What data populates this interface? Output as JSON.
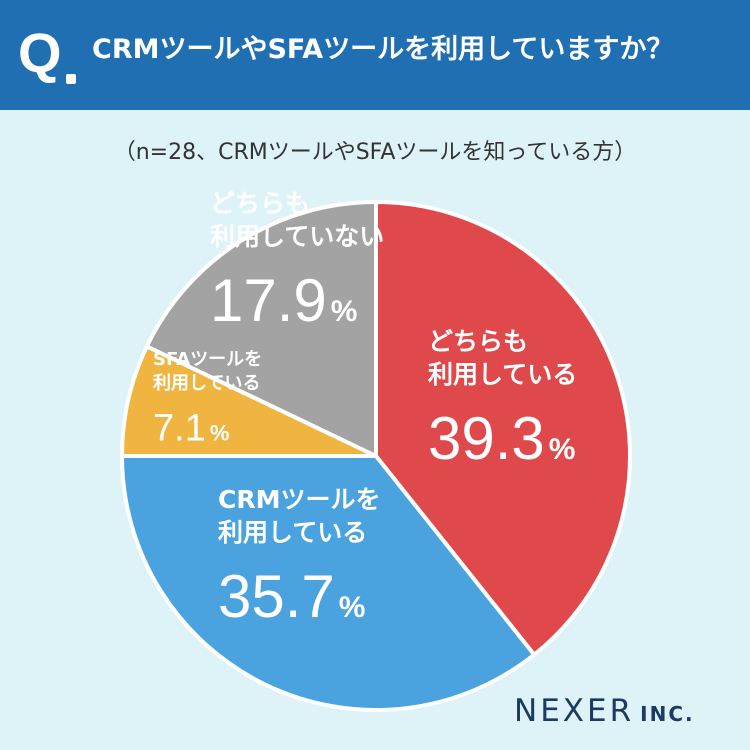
{
  "header": {
    "q": "Q",
    "question": "CRMツールやSFAツールを利用していますか？"
  },
  "subtitle": "（n=28、CRMツールやSFAツールを知っている方）",
  "chart_data": {
    "type": "pie",
    "slices": [
      {
        "label_lines": [
          "どちらも",
          "利用している"
        ],
        "value": 39.3,
        "value_text": "39.3",
        "color": "#e0494c"
      },
      {
        "label_lines": [
          "CRMツールを",
          "利用している"
        ],
        "value": 35.7,
        "value_text": "35.7",
        "color": "#4aa3df"
      },
      {
        "label_lines": [
          "SFAツールを",
          "利用している"
        ],
        "value": 7.1,
        "value_text": "7.1",
        "color": "#f0b440"
      },
      {
        "label_lines": [
          "どちらも",
          "利用していない"
        ],
        "value": 17.9,
        "value_text": "17.9",
        "color": "#a3a3a3"
      }
    ],
    "unit": "%",
    "start": "12 o'clock",
    "direction": "clockwise"
  },
  "brand": {
    "name": "NEXER",
    "suffix": "INC."
  }
}
